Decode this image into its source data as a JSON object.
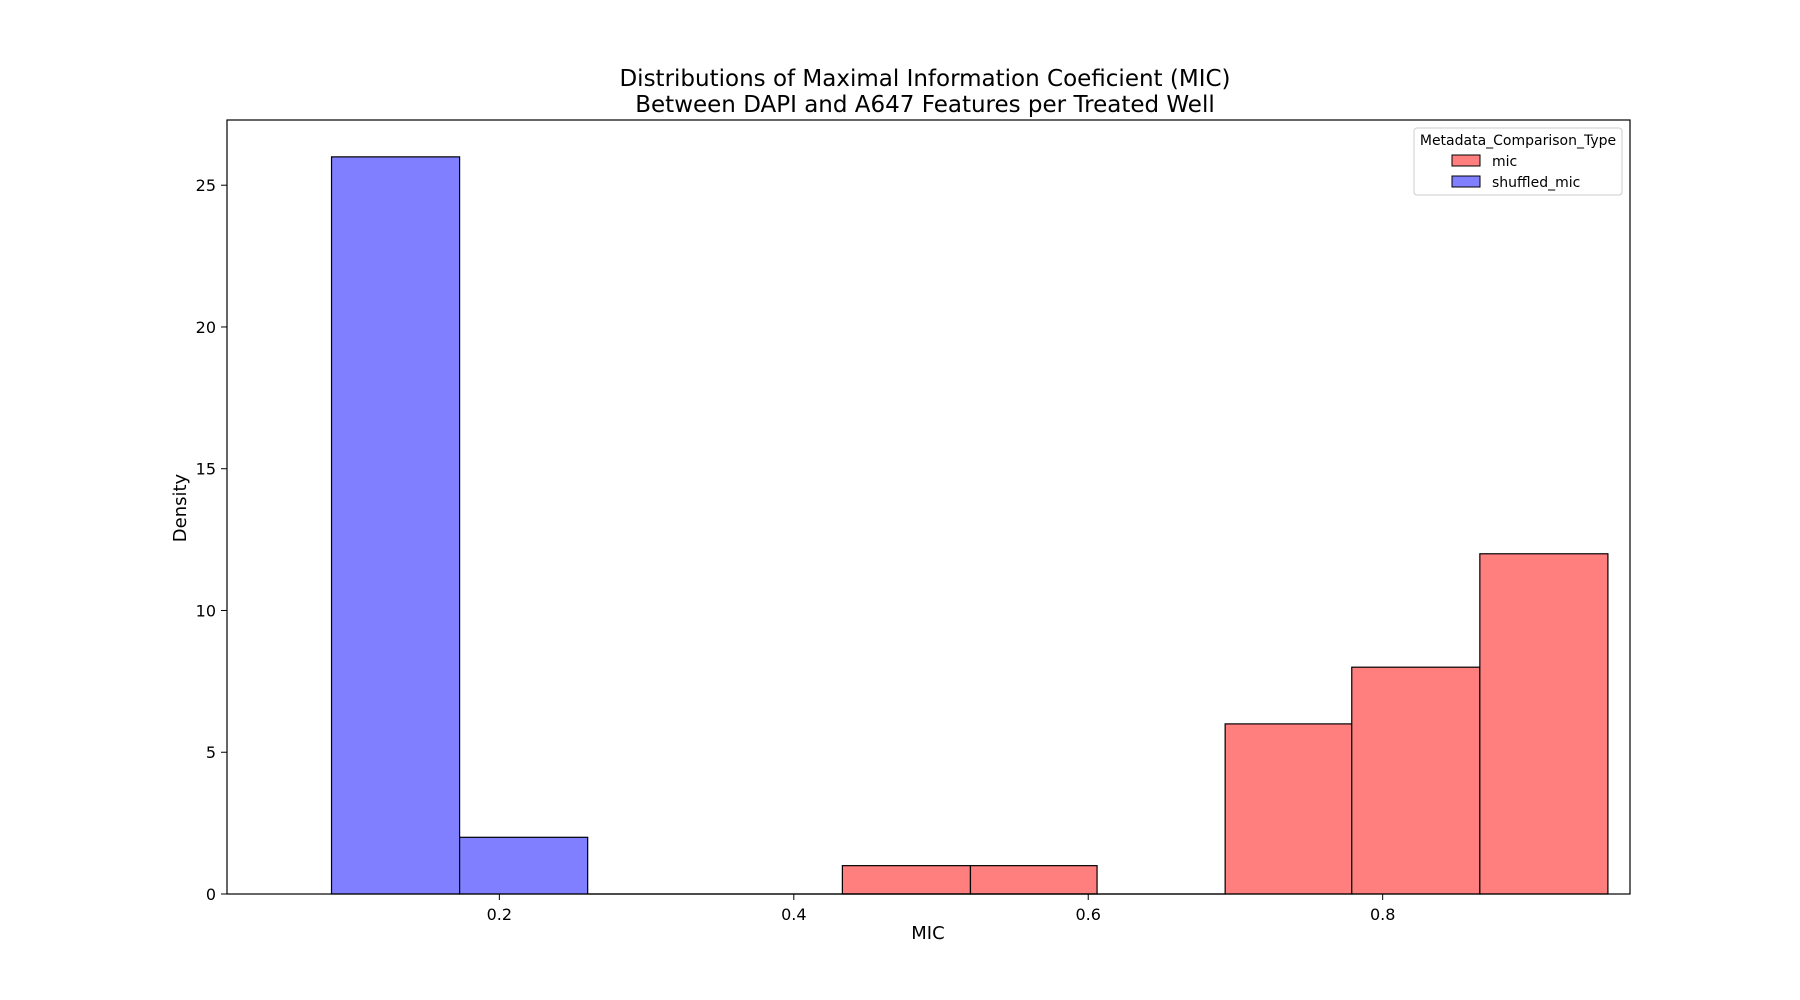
{
  "chart_data": {
    "type": "histogram",
    "title_lines": [
      "Distributions of Maximal Information Coeficient (MIC)",
      "Between DAPI and A647 Features per Treated Well"
    ],
    "xlabel": "MIC",
    "ylabel": "Density",
    "xlim": [
      0.015,
      0.968
    ],
    "ylim": [
      0,
      27.3
    ],
    "x_ticks": [
      {
        "value": 0.2,
        "label": "0.2"
      },
      {
        "value": 0.4,
        "label": "0.4"
      },
      {
        "value": 0.6,
        "label": "0.6"
      },
      {
        "value": 0.8,
        "label": "0.8"
      }
    ],
    "y_ticks": [
      {
        "value": 0,
        "label": "0"
      },
      {
        "value": 5,
        "label": "5"
      },
      {
        "value": 10,
        "label": "10"
      },
      {
        "value": 15,
        "label": "15"
      },
      {
        "value": 20,
        "label": "20"
      },
      {
        "value": 25,
        "label": "25"
      }
    ],
    "legend": {
      "title": "Metadata_Comparison_Type",
      "placement": "top-right"
    },
    "series": [
      {
        "name": "mic",
        "color": "#ff7f7f",
        "bins": [
          {
            "x0": 0.433,
            "x1": 0.52,
            "value": 1
          },
          {
            "x0": 0.52,
            "x1": 0.606,
            "value": 1
          },
          {
            "x0": 0.693,
            "x1": 0.779,
            "value": 6
          },
          {
            "x0": 0.779,
            "x1": 0.866,
            "value": 8
          },
          {
            "x0": 0.866,
            "x1": 0.953,
            "value": 12
          }
        ]
      },
      {
        "name": "shuffled_mic",
        "color": "#7f7fff",
        "bins": [
          {
            "x0": 0.086,
            "x1": 0.173,
            "value": 26
          },
          {
            "x0": 0.173,
            "x1": 0.26,
            "value": 2
          }
        ]
      }
    ],
    "baseline_span": [
      0.26,
      0.693
    ]
  }
}
